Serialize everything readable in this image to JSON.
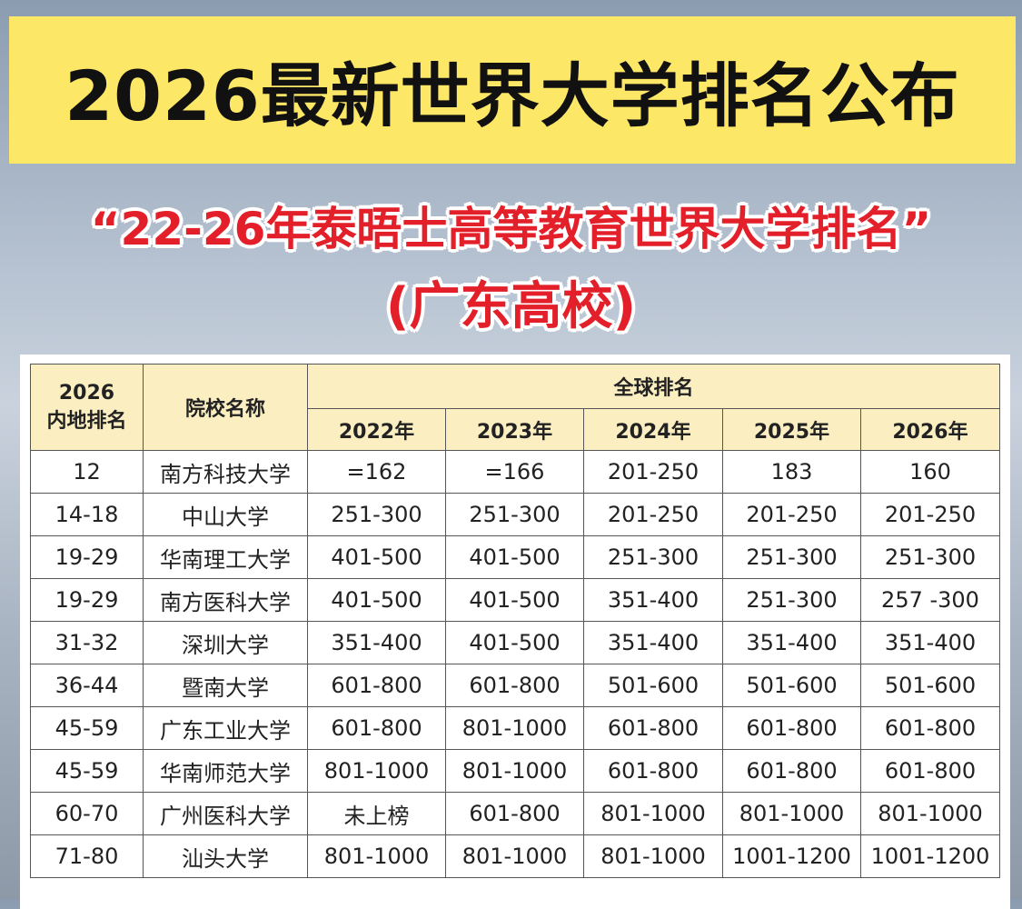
{
  "header": {
    "title": "2026最新世界大学排名公布"
  },
  "subtitle": {
    "line1": "“22-26年泰晤士高等教育世界大学排名”",
    "line2": "(广东高校)"
  },
  "table": {
    "rank_header": [
      "2026",
      "内地排名"
    ],
    "name_header": "院校名称",
    "group_header": "全球排名",
    "years": [
      "2022年",
      "2023年",
      "2024年",
      "2025年",
      "2026年"
    ],
    "rows": [
      [
        "12",
        "南方科技大学",
        "=162",
        "=166",
        "201-250",
        "183",
        "160"
      ],
      [
        "14-18",
        "中山大学",
        "251-300",
        "251-300",
        "201-250",
        "201-250",
        "201-250"
      ],
      [
        "19-29",
        "华南理工大学",
        "401-500",
        "401-500",
        "251-300",
        "251-300",
        "251-300"
      ],
      [
        "19-29",
        "南方医科大学",
        "401-500",
        "401-500",
        "351-400",
        "251-300",
        "257 -300"
      ],
      [
        "31-32",
        "深圳大学",
        "351-400",
        "401-500",
        "351-400",
        "351-400",
        "351-400"
      ],
      [
        "36-44",
        "暨南大学",
        "601-800",
        "601-800",
        "501-600",
        "501-600",
        "501-600"
      ],
      [
        "45-59",
        "广东工业大学",
        "601-800",
        "801-1000",
        "601-800",
        "601-800",
        "601-800"
      ],
      [
        "45-59",
        "华南师范大学",
        "801-1000",
        "801-1000",
        "601-800",
        "601-800",
        "601-800"
      ],
      [
        "60-70",
        "广州医科大学",
        "未上榜",
        "601-800",
        "801-1000",
        "801-1000",
        "801-1000"
      ],
      [
        "71-80",
        "汕头大学",
        "801-1000",
        "801-1000",
        "801-1000",
        "1001-1200",
        "1001-1200"
      ]
    ]
  }
}
